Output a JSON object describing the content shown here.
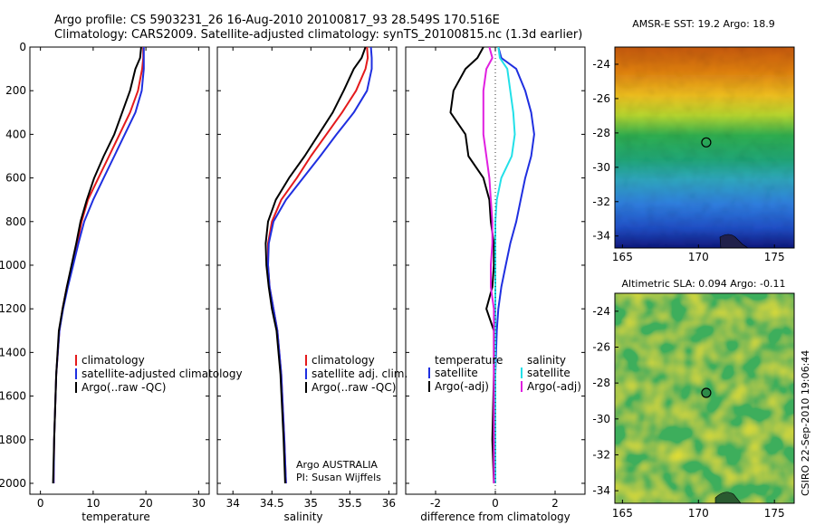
{
  "header": {
    "line1": "Argo profile: CS 5903231_26 16-Aug-2010 20100817_93 28.549S 170.516E",
    "line2": "Climatology: CARS2009. Satellite-adjusted climatology: synTS_20100815.nc (1.3d earlier)"
  },
  "colors": {
    "climatology": "#e41a1c",
    "satellite": "#1f2fe0",
    "argo": "#000000",
    "salinity_satellite": "#22e0e8",
    "salinity_argo": "#e020e0"
  },
  "panels": {
    "temperature": {
      "xlabel": "temperature",
      "legend": [
        "climatology",
        "satellite-adjusted climatology",
        "Argo(..raw -QC)"
      ]
    },
    "salinity": {
      "xlabel": "salinity",
      "legend": [
        "climatology",
        "satellite adj. clim.",
        "Argo(..raw -QC)"
      ],
      "credit1": "Argo AUSTRALIA",
      "credit2": "PI: Susan Wijffels"
    },
    "difference": {
      "xlabel": "difference from climatology",
      "legend_left_title": "temperature",
      "legend_left": [
        "satellite",
        "Argo(-adj)"
      ],
      "legend_right_title": "salinity",
      "legend_right": [
        "satellite",
        "Argo(-adj)"
      ]
    }
  },
  "maps": {
    "sst": {
      "title": "AMSR-E SST: 19.2 Argo: 18.9"
    },
    "sla": {
      "title": "Altimetric SLA: 0.094 Argo: -0.11"
    },
    "lon_ticks": [
      "165",
      "170",
      "175"
    ],
    "lat_ticks": [
      "-24",
      "-26",
      "-28",
      "-30",
      "-32",
      "-34"
    ],
    "float_marker": {
      "lon": 170.516,
      "lat": -28.549
    }
  },
  "footer": {
    "stamp": "CSIRO 22-Sep-2010 19:06:44"
  },
  "chart_data": [
    {
      "type": "line",
      "name": "temperature",
      "xlabel": "temperature",
      "ylabel": "",
      "xlim": [
        -2,
        32
      ],
      "ylim": [
        2050,
        0
      ],
      "xticks": [
        0,
        10,
        20,
        30
      ],
      "yticks": [
        0,
        200,
        400,
        600,
        800,
        1000,
        1200,
        1400,
        1600,
        1800,
        2000
      ],
      "series": [
        {
          "name": "climatology",
          "color": "#e41a1c",
          "x": [
            19.5,
            19.5,
            19.3,
            18.5,
            17,
            15,
            13,
            11,
            9,
            7.8,
            7,
            6,
            5,
            4.2,
            3.6,
            3,
            2.6,
            2.5
          ],
          "y": [
            0,
            50,
            100,
            200,
            300,
            400,
            500,
            600,
            700,
            800,
            900,
            1000,
            1100,
            1200,
            1300,
            1500,
            1800,
            2000
          ]
        },
        {
          "name": "satellite-adjusted climatology",
          "color": "#1f2fe0",
          "x": [
            19.6,
            19.6,
            19.6,
            19.2,
            18,
            16,
            14,
            12,
            10,
            8.3,
            7.2,
            6.2,
            5.2,
            4.3,
            3.6,
            3,
            2.6,
            2.5
          ],
          "y": [
            0,
            50,
            100,
            200,
            300,
            400,
            500,
            600,
            700,
            800,
            900,
            1000,
            1100,
            1200,
            1300,
            1500,
            1800,
            2000
          ]
        },
        {
          "name": "Argo(..raw -QC)",
          "color": "#000000",
          "x": [
            19.1,
            18.9,
            18,
            17,
            15.5,
            14,
            12,
            10.2,
            8.8,
            7.6,
            6.8,
            5.9,
            5,
            4.2,
            3.5,
            3,
            2.6,
            2.4
          ],
          "y": [
            0,
            50,
            100,
            200,
            300,
            400,
            500,
            600,
            700,
            800,
            900,
            1000,
            1100,
            1200,
            1300,
            1500,
            1800,
            2000
          ]
        }
      ]
    },
    {
      "type": "line",
      "name": "salinity",
      "xlabel": "salinity",
      "ylabel": "",
      "xlim": [
        33.8,
        36.1
      ],
      "ylim": [
        2050,
        0
      ],
      "xticks": [
        34,
        34.5,
        35,
        35.5,
        36
      ],
      "series": [
        {
          "name": "climatology",
          "color": "#e41a1c",
          "x": [
            35.72,
            35.73,
            35.7,
            35.58,
            35.4,
            35.2,
            35,
            34.82,
            34.62,
            34.5,
            34.45,
            34.45,
            34.47,
            34.52,
            34.57,
            34.62,
            34.66,
            34.68
          ],
          "y": [
            0,
            50,
            100,
            200,
            300,
            400,
            500,
            600,
            700,
            800,
            900,
            1000,
            1100,
            1200,
            1300,
            1500,
            1800,
            2000
          ]
        },
        {
          "name": "satellite adj. clim.",
          "color": "#1f2fe0",
          "x": [
            35.77,
            35.78,
            35.78,
            35.72,
            35.55,
            35.33,
            35.12,
            34.9,
            34.68,
            34.52,
            34.46,
            34.45,
            34.47,
            34.52,
            34.57,
            34.62,
            34.66,
            34.68
          ],
          "y": [
            0,
            50,
            100,
            200,
            300,
            400,
            500,
            600,
            700,
            800,
            900,
            1000,
            1100,
            1200,
            1300,
            1500,
            1800,
            2000
          ]
        },
        {
          "name": "Argo(..raw -QC)",
          "color": "#000000",
          "x": [
            35.7,
            35.65,
            35.55,
            35.42,
            35.28,
            35.1,
            34.92,
            34.72,
            34.55,
            34.45,
            34.42,
            34.43,
            34.46,
            34.5,
            34.56,
            34.61,
            34.65,
            34.67
          ],
          "y": [
            0,
            50,
            100,
            200,
            300,
            400,
            500,
            600,
            700,
            800,
            900,
            1000,
            1100,
            1200,
            1300,
            1500,
            1800,
            2000
          ]
        }
      ]
    },
    {
      "type": "line",
      "name": "difference",
      "xlabel": "difference from climatology",
      "ylabel": "",
      "xlim": [
        -3,
        3
      ],
      "ylim": [
        2050,
        0
      ],
      "xticks": [
        -2,
        0,
        2
      ],
      "series": [
        {
          "name": "temperature satellite",
          "color": "#1f2fe0",
          "x": [
            0.1,
            0.2,
            0.7,
            1,
            1.2,
            1.3,
            1.2,
            1,
            0.85,
            0.7,
            0.5,
            0.35,
            0.2,
            0.1,
            0.05,
            0,
            0,
            0
          ],
          "y": [
            0,
            50,
            100,
            200,
            300,
            400,
            500,
            600,
            700,
            800,
            900,
            1000,
            1100,
            1200,
            1300,
            1500,
            1800,
            2000
          ]
        },
        {
          "name": "temperature Argo(-adj)",
          "color": "#000000",
          "x": [
            -0.4,
            -0.6,
            -1,
            -1.4,
            -1.5,
            -1,
            -0.9,
            -0.4,
            -0.2,
            -0.15,
            -0.05,
            -0.05,
            -0.1,
            -0.3,
            -0.05,
            -0.05,
            -0.1,
            -0.05
          ],
          "y": [
            0,
            50,
            100,
            200,
            300,
            400,
            500,
            600,
            700,
            800,
            900,
            1000,
            1100,
            1200,
            1300,
            1500,
            1800,
            2000
          ]
        },
        {
          "name": "salinity satellite",
          "color": "#22e0e8",
          "x": [
            0.1,
            0.15,
            0.4,
            0.5,
            0.6,
            0.65,
            0.55,
            0.2,
            0.05,
            0,
            0,
            0,
            0,
            0,
            0,
            0,
            0,
            0
          ],
          "y": [
            0,
            50,
            100,
            200,
            300,
            400,
            500,
            600,
            700,
            800,
            900,
            1000,
            1100,
            1200,
            1300,
            1500,
            1800,
            2000
          ]
        },
        {
          "name": "salinity Argo(-adj)",
          "color": "#e020e0",
          "x": [
            -0.2,
            -0.1,
            -0.3,
            -0.4,
            -0.4,
            -0.4,
            -0.3,
            -0.2,
            -0.15,
            -0.1,
            -0.1,
            -0.15,
            -0.15,
            -0.05,
            -0.05,
            -0.05,
            -0.05,
            -0.05
          ],
          "y": [
            0,
            50,
            100,
            200,
            300,
            400,
            500,
            600,
            700,
            800,
            900,
            1000,
            1100,
            1200,
            1300,
            1500,
            1800,
            2000
          ]
        }
      ]
    }
  ]
}
